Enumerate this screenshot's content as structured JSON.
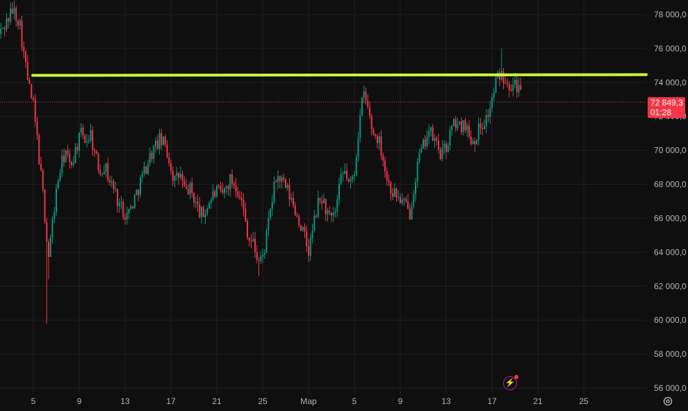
{
  "chart_data": {
    "type": "candlestick",
    "y_axis": {
      "ticks": [
        "78 000,0",
        "76 000,0",
        "74 000,0",
        "72 000,0",
        "70 000,0",
        "68 000,0",
        "66 000,0",
        "64 000,0",
        "62 000,0",
        "60 000,0",
        "58 000,0",
        "56 000,0"
      ],
      "tick_values": [
        78000,
        76000,
        74000,
        72000,
        70000,
        68000,
        66000,
        64000,
        62000,
        60000,
        58000,
        56000
      ],
      "ylim": [
        55000,
        79000
      ]
    },
    "x_axis": {
      "ticks": [
        "5",
        "9",
        "13",
        "17",
        "21",
        "25",
        "Мар",
        "5",
        "9",
        "13",
        "17",
        "21",
        "25"
      ],
      "tick_days": [
        5,
        9,
        13,
        17,
        21,
        25,
        29,
        33,
        37,
        41,
        45,
        49,
        53
      ],
      "xlim": [
        2,
        58
      ]
    },
    "support_line": {
      "y": 74400
    },
    "last_price": {
      "price_label": "72 849,3",
      "countdown": "01:28",
      "value": 72849.3
    },
    "keypoints": [
      [
        2.0,
        76800
      ],
      [
        2.6,
        77500
      ],
      [
        3.2,
        78300
      ],
      [
        3.8,
        77600
      ],
      [
        4.2,
        75500
      ],
      [
        4.6,
        73800
      ],
      [
        5.0,
        72600
      ],
      [
        5.4,
        70200
      ],
      [
        5.9,
        67000
      ],
      [
        6.3,
        63600
      ],
      [
        6.8,
        66500
      ],
      [
        7.2,
        68500
      ],
      [
        7.8,
        70000
      ],
      [
        8.2,
        69000
      ],
      [
        8.8,
        70300
      ],
      [
        9.2,
        71000
      ],
      [
        9.6,
        70600
      ],
      [
        10.0,
        71000
      ],
      [
        10.4,
        69600
      ],
      [
        10.8,
        68800
      ],
      [
        11.2,
        69200
      ],
      [
        11.6,
        68300
      ],
      [
        12.0,
        67800
      ],
      [
        12.4,
        67000
      ],
      [
        12.8,
        66500
      ],
      [
        13.2,
        66200
      ],
      [
        13.6,
        66800
      ],
      [
        14.0,
        67500
      ],
      [
        14.4,
        68300
      ],
      [
        14.8,
        69000
      ],
      [
        15.2,
        69700
      ],
      [
        15.6,
        70200
      ],
      [
        16.0,
        70600
      ],
      [
        16.5,
        70300
      ],
      [
        16.9,
        69300
      ],
      [
        17.3,
        68200
      ],
      [
        17.8,
        68600
      ],
      [
        18.2,
        67500
      ],
      [
        18.6,
        67800
      ],
      [
        19.0,
        67200
      ],
      [
        19.4,
        66500
      ],
      [
        19.8,
        66100
      ],
      [
        20.2,
        66800
      ],
      [
        20.6,
        67300
      ],
      [
        21.0,
        67600
      ],
      [
        21.4,
        67300
      ],
      [
        21.8,
        67800
      ],
      [
        22.2,
        68300
      ],
      [
        22.6,
        68000
      ],
      [
        23.0,
        67500
      ],
      [
        23.4,
        66200
      ],
      [
        23.8,
        64800
      ],
      [
        24.2,
        64500
      ],
      [
        24.6,
        63500
      ],
      [
        25.0,
        63700
      ],
      [
        25.4,
        65200
      ],
      [
        25.8,
        67000
      ],
      [
        26.2,
        68500
      ],
      [
        26.6,
        68200
      ],
      [
        27.0,
        67800
      ],
      [
        27.4,
        67200
      ],
      [
        27.8,
        66500
      ],
      [
        28.2,
        65800
      ],
      [
        28.6,
        65000
      ],
      [
        29.0,
        64000
      ],
      [
        29.4,
        65500
      ],
      [
        29.8,
        66800
      ],
      [
        30.2,
        67200
      ],
      [
        30.6,
        66300
      ],
      [
        31.0,
        65800
      ],
      [
        31.4,
        66500
      ],
      [
        31.8,
        68200
      ],
      [
        32.2,
        68800
      ],
      [
        32.6,
        67800
      ],
      [
        33.0,
        68800
      ],
      [
        33.4,
        71500
      ],
      [
        33.8,
        73400
      ],
      [
        34.2,
        72400
      ],
      [
        34.6,
        71000
      ],
      [
        35.0,
        70800
      ],
      [
        35.4,
        70000
      ],
      [
        35.8,
        68400
      ],
      [
        36.2,
        67700
      ],
      [
        36.6,
        67400
      ],
      [
        37.0,
        67100
      ],
      [
        37.4,
        66800
      ],
      [
        37.8,
        66200
      ],
      [
        38.2,
        68000
      ],
      [
        38.6,
        69500
      ],
      [
        39.0,
        70200
      ],
      [
        39.4,
        71200
      ],
      [
        39.8,
        70800
      ],
      [
        40.2,
        70300
      ],
      [
        40.6,
        69700
      ],
      [
        41.0,
        70200
      ],
      [
        41.4,
        71100
      ],
      [
        41.8,
        71700
      ],
      [
        42.2,
        71300
      ],
      [
        42.6,
        71800
      ],
      [
        43.0,
        70800
      ],
      [
        43.4,
        70600
      ],
      [
        43.8,
        71200
      ],
      [
        44.2,
        71600
      ],
      [
        44.6,
        72000
      ],
      [
        45.0,
        73000
      ],
      [
        45.4,
        74200
      ],
      [
        45.8,
        74500
      ],
      [
        46.2,
        74300
      ],
      [
        46.6,
        73900
      ],
      [
        47.0,
        74100
      ],
      [
        47.4,
        73500
      ],
      [
        47.6,
        72849
      ]
    ]
  }
}
